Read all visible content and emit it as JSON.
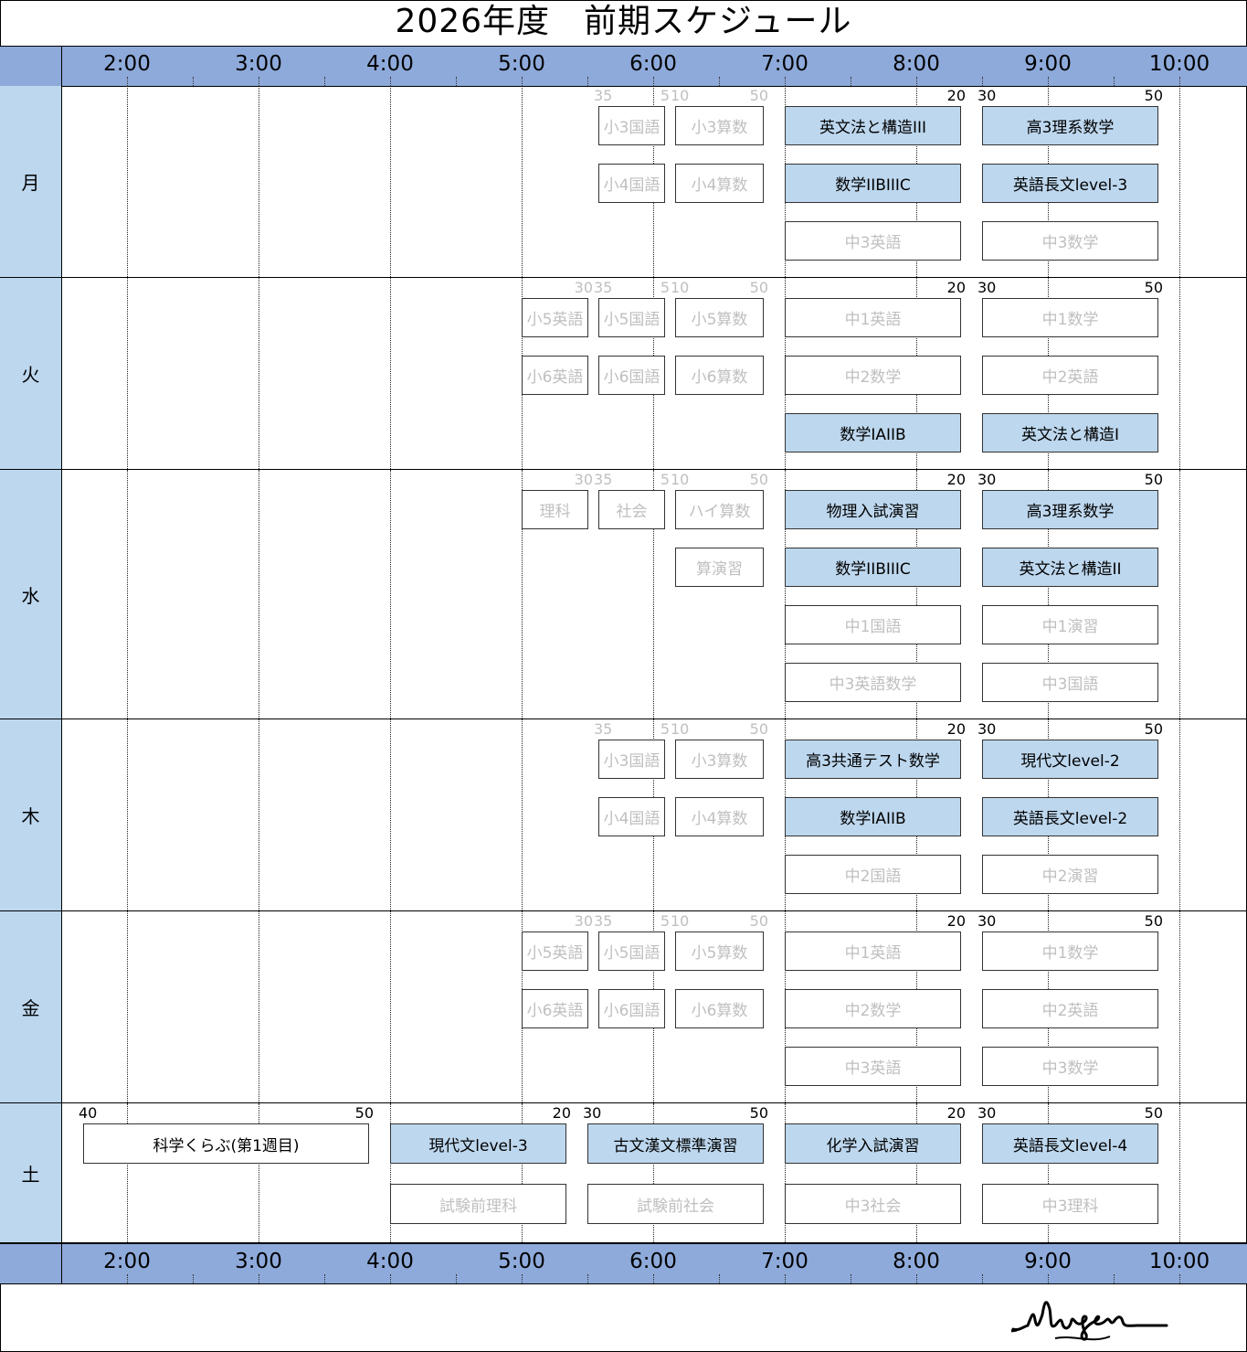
{
  "title": "2026年度　前期スケジュール",
  "hours": [
    "2:00",
    "3:00",
    "4:00",
    "5:00",
    "6:00",
    "7:00",
    "8:00",
    "9:00",
    "10:00"
  ],
  "colors": {
    "header": "#8eaadb",
    "day": "#bdd7ee",
    "highlight": "#bdd7ee",
    "dim_text": "#bfbfbf"
  },
  "rows": [
    {
      "day": "月",
      "lines": 3,
      "marks": [
        {
          "t": "35",
          "at": "5:35",
          "side": "start",
          "tone": "gray"
        },
        {
          "t": "5",
          "at": "6:05",
          "side": "end",
          "tone": "gray"
        },
        {
          "t": "10",
          "at": "6:10",
          "side": "start",
          "tone": "gray"
        },
        {
          "t": "50",
          "at": "6:50",
          "side": "end",
          "tone": "gray"
        },
        {
          "t": "20",
          "at": "8:20",
          "side": "end",
          "tone": "black"
        },
        {
          "t": "30",
          "at": "8:30",
          "side": "start",
          "tone": "black"
        },
        {
          "t": "50",
          "at": "9:50",
          "side": "end",
          "tone": "black"
        }
      ],
      "lessons": [
        {
          "name": "小3国語",
          "start": "5:35",
          "end": "6:05",
          "line": 0,
          "style": "dim"
        },
        {
          "name": "小3算数",
          "start": "6:10",
          "end": "6:50",
          "line": 0,
          "style": "dim"
        },
        {
          "name": "英文法と構造III",
          "start": "7:00",
          "end": "8:20",
          "line": 0,
          "style": "hi"
        },
        {
          "name": "高3理系数学",
          "start": "8:30",
          "end": "9:50",
          "line": 0,
          "style": "hi"
        },
        {
          "name": "小4国語",
          "start": "5:35",
          "end": "6:05",
          "line": 1,
          "style": "dim"
        },
        {
          "name": "小4算数",
          "start": "6:10",
          "end": "6:50",
          "line": 1,
          "style": "dim"
        },
        {
          "name": "数学IIBIIIC",
          "start": "7:00",
          "end": "8:20",
          "line": 1,
          "style": "hi"
        },
        {
          "name": "英語長文level-3",
          "start": "8:30",
          "end": "9:50",
          "line": 1,
          "style": "hi"
        },
        {
          "name": "中3英語",
          "start": "7:00",
          "end": "8:20",
          "line": 2,
          "style": "dim"
        },
        {
          "name": "中3数学",
          "start": "8:30",
          "end": "9:50",
          "line": 2,
          "style": "dim"
        }
      ]
    },
    {
      "day": "火",
      "lines": 3,
      "marks": [
        {
          "t": "30",
          "at": "5:30",
          "side": "end",
          "tone": "gray"
        },
        {
          "t": "35",
          "at": "5:35",
          "side": "start",
          "tone": "gray"
        },
        {
          "t": "5",
          "at": "6:05",
          "side": "end",
          "tone": "gray"
        },
        {
          "t": "10",
          "at": "6:10",
          "side": "start",
          "tone": "gray"
        },
        {
          "t": "50",
          "at": "6:50",
          "side": "end",
          "tone": "gray"
        },
        {
          "t": "20",
          "at": "8:20",
          "side": "end",
          "tone": "black"
        },
        {
          "t": "30",
          "at": "8:30",
          "side": "start",
          "tone": "black"
        },
        {
          "t": "50",
          "at": "9:50",
          "side": "end",
          "tone": "black"
        }
      ],
      "lessons": [
        {
          "name": "小5英語",
          "start": "5:00",
          "end": "5:30",
          "line": 0,
          "style": "dim"
        },
        {
          "name": "小5国語",
          "start": "5:35",
          "end": "6:05",
          "line": 0,
          "style": "dim"
        },
        {
          "name": "小5算数",
          "start": "6:10",
          "end": "6:50",
          "line": 0,
          "style": "dim"
        },
        {
          "name": "中1英語",
          "start": "7:00",
          "end": "8:20",
          "line": 0,
          "style": "dim"
        },
        {
          "name": "中1数学",
          "start": "8:30",
          "end": "9:50",
          "line": 0,
          "style": "dim"
        },
        {
          "name": "小6英語",
          "start": "5:00",
          "end": "5:30",
          "line": 1,
          "style": "dim"
        },
        {
          "name": "小6国語",
          "start": "5:35",
          "end": "6:05",
          "line": 1,
          "style": "dim"
        },
        {
          "name": "小6算数",
          "start": "6:10",
          "end": "6:50",
          "line": 1,
          "style": "dim"
        },
        {
          "name": "中2数学",
          "start": "7:00",
          "end": "8:20",
          "line": 1,
          "style": "dim"
        },
        {
          "name": "中2英語",
          "start": "8:30",
          "end": "9:50",
          "line": 1,
          "style": "dim"
        },
        {
          "name": "数学IAIIB",
          "start": "7:00",
          "end": "8:20",
          "line": 2,
          "style": "hi"
        },
        {
          "name": "英文法と構造I",
          "start": "8:30",
          "end": "9:50",
          "line": 2,
          "style": "hi"
        }
      ]
    },
    {
      "day": "水",
      "lines": 4,
      "marks": [
        {
          "t": "30",
          "at": "5:30",
          "side": "end",
          "tone": "gray"
        },
        {
          "t": "35",
          "at": "5:35",
          "side": "start",
          "tone": "gray"
        },
        {
          "t": "5",
          "at": "6:05",
          "side": "end",
          "tone": "gray"
        },
        {
          "t": "10",
          "at": "6:10",
          "side": "start",
          "tone": "gray"
        },
        {
          "t": "50",
          "at": "6:50",
          "side": "end",
          "tone": "gray"
        },
        {
          "t": "20",
          "at": "8:20",
          "side": "end",
          "tone": "black"
        },
        {
          "t": "30",
          "at": "8:30",
          "side": "start",
          "tone": "black"
        },
        {
          "t": "50",
          "at": "9:50",
          "side": "end",
          "tone": "black"
        }
      ],
      "lessons": [
        {
          "name": "理科",
          "start": "5:00",
          "end": "5:30",
          "line": 0,
          "style": "dim"
        },
        {
          "name": "社会",
          "start": "5:35",
          "end": "6:05",
          "line": 0,
          "style": "dim"
        },
        {
          "name": "ハイ算数",
          "start": "6:10",
          "end": "6:50",
          "line": 0,
          "style": "dim"
        },
        {
          "name": "物理入試演習",
          "start": "7:00",
          "end": "8:20",
          "line": 0,
          "style": "hi"
        },
        {
          "name": "高3理系数学",
          "start": "8:30",
          "end": "9:50",
          "line": 0,
          "style": "hi"
        },
        {
          "name": "算演習",
          "start": "6:10",
          "end": "6:50",
          "line": 1,
          "style": "dim"
        },
        {
          "name": "数学IIBIIIC",
          "start": "7:00",
          "end": "8:20",
          "line": 1,
          "style": "hi"
        },
        {
          "name": "英文法と構造II",
          "start": "8:30",
          "end": "9:50",
          "line": 1,
          "style": "hi"
        },
        {
          "name": "中1国語",
          "start": "7:00",
          "end": "8:20",
          "line": 2,
          "style": "dim"
        },
        {
          "name": "中1演習",
          "start": "8:30",
          "end": "9:50",
          "line": 2,
          "style": "dim"
        },
        {
          "name": "中3英語数学",
          "start": "7:00",
          "end": "8:20",
          "line": 3,
          "style": "dim"
        },
        {
          "name": "中3国語",
          "start": "8:30",
          "end": "9:50",
          "line": 3,
          "style": "dim"
        }
      ]
    },
    {
      "day": "木",
      "lines": 3,
      "marks": [
        {
          "t": "35",
          "at": "5:35",
          "side": "start",
          "tone": "gray"
        },
        {
          "t": "5",
          "at": "6:05",
          "side": "end",
          "tone": "gray"
        },
        {
          "t": "10",
          "at": "6:10",
          "side": "start",
          "tone": "gray"
        },
        {
          "t": "50",
          "at": "6:50",
          "side": "end",
          "tone": "gray"
        },
        {
          "t": "20",
          "at": "8:20",
          "side": "end",
          "tone": "black"
        },
        {
          "t": "30",
          "at": "8:30",
          "side": "start",
          "tone": "black"
        },
        {
          "t": "50",
          "at": "9:50",
          "side": "end",
          "tone": "black"
        }
      ],
      "lessons": [
        {
          "name": "小3国語",
          "start": "5:35",
          "end": "6:05",
          "line": 0,
          "style": "dim"
        },
        {
          "name": "小3算数",
          "start": "6:10",
          "end": "6:50",
          "line": 0,
          "style": "dim"
        },
        {
          "name": "高3共通テスト数学",
          "start": "7:00",
          "end": "8:20",
          "line": 0,
          "style": "hi"
        },
        {
          "name": "現代文level-2",
          "start": "8:30",
          "end": "9:50",
          "line": 0,
          "style": "hi"
        },
        {
          "name": "小4国語",
          "start": "5:35",
          "end": "6:05",
          "line": 1,
          "style": "dim"
        },
        {
          "name": "小4算数",
          "start": "6:10",
          "end": "6:50",
          "line": 1,
          "style": "dim"
        },
        {
          "name": "数学IAIIB",
          "start": "7:00",
          "end": "8:20",
          "line": 1,
          "style": "hi"
        },
        {
          "name": "英語長文level-2",
          "start": "8:30",
          "end": "9:50",
          "line": 1,
          "style": "hi"
        },
        {
          "name": "中2国語",
          "start": "7:00",
          "end": "8:20",
          "line": 2,
          "style": "dim"
        },
        {
          "name": "中2演習",
          "start": "8:30",
          "end": "9:50",
          "line": 2,
          "style": "dim"
        }
      ]
    },
    {
      "day": "金",
      "lines": 3,
      "marks": [
        {
          "t": "30",
          "at": "5:30",
          "side": "end",
          "tone": "gray"
        },
        {
          "t": "35",
          "at": "5:35",
          "side": "start",
          "tone": "gray"
        },
        {
          "t": "5",
          "at": "6:05",
          "side": "end",
          "tone": "gray"
        },
        {
          "t": "10",
          "at": "6:10",
          "side": "start",
          "tone": "gray"
        },
        {
          "t": "50",
          "at": "6:50",
          "side": "end",
          "tone": "gray"
        },
        {
          "t": "20",
          "at": "8:20",
          "side": "end",
          "tone": "black"
        },
        {
          "t": "30",
          "at": "8:30",
          "side": "start",
          "tone": "black"
        },
        {
          "t": "50",
          "at": "9:50",
          "side": "end",
          "tone": "black"
        }
      ],
      "lessons": [
        {
          "name": "小5英語",
          "start": "5:00",
          "end": "5:30",
          "line": 0,
          "style": "dim"
        },
        {
          "name": "小5国語",
          "start": "5:35",
          "end": "6:05",
          "line": 0,
          "style": "dim"
        },
        {
          "name": "小5算数",
          "start": "6:10",
          "end": "6:50",
          "line": 0,
          "style": "dim"
        },
        {
          "name": "中1英語",
          "start": "7:00",
          "end": "8:20",
          "line": 0,
          "style": "dim"
        },
        {
          "name": "中1数学",
          "start": "8:30",
          "end": "9:50",
          "line": 0,
          "style": "dim"
        },
        {
          "name": "小6英語",
          "start": "5:00",
          "end": "5:30",
          "line": 1,
          "style": "dim"
        },
        {
          "name": "小6国語",
          "start": "5:35",
          "end": "6:05",
          "line": 1,
          "style": "dim"
        },
        {
          "name": "小6算数",
          "start": "6:10",
          "end": "6:50",
          "line": 1,
          "style": "dim"
        },
        {
          "name": "中2数学",
          "start": "7:00",
          "end": "8:20",
          "line": 1,
          "style": "dim"
        },
        {
          "name": "中2英語",
          "start": "8:30",
          "end": "9:50",
          "line": 1,
          "style": "dim"
        },
        {
          "name": "中3英語",
          "start": "7:00",
          "end": "8:20",
          "line": 2,
          "style": "dim"
        },
        {
          "name": "中3数学",
          "start": "8:30",
          "end": "9:50",
          "line": 2,
          "style": "dim"
        }
      ]
    },
    {
      "day": "土",
      "lines": 2,
      "marks": [
        {
          "t": "40",
          "at": "1:40",
          "side": "start",
          "tone": "black"
        },
        {
          "t": "50",
          "at": "3:50",
          "side": "end",
          "tone": "black"
        },
        {
          "t": "20",
          "at": "5:20",
          "side": "end",
          "tone": "black"
        },
        {
          "t": "30",
          "at": "5:30",
          "side": "start",
          "tone": "black"
        },
        {
          "t": "50",
          "at": "6:50",
          "side": "end",
          "tone": "black"
        },
        {
          "t": "20",
          "at": "8:20",
          "side": "end",
          "tone": "black"
        },
        {
          "t": "30",
          "at": "8:30",
          "side": "start",
          "tone": "black"
        },
        {
          "t": "50",
          "at": "9:50",
          "side": "end",
          "tone": "black"
        }
      ],
      "lessons": [
        {
          "name": "科学くらぶ(第1週目)",
          "start": "1:40",
          "end": "3:50",
          "line": 0,
          "style": "plain"
        },
        {
          "name": "現代文level-3",
          "start": "4:00",
          "end": "5:20",
          "line": 0,
          "style": "hi"
        },
        {
          "name": "古文漢文標準演習",
          "start": "5:30",
          "end": "6:50",
          "line": 0,
          "style": "hi"
        },
        {
          "name": "化学入試演習",
          "start": "7:00",
          "end": "8:20",
          "line": 0,
          "style": "hi"
        },
        {
          "name": "英語長文level-4",
          "start": "8:30",
          "end": "9:50",
          "line": 0,
          "style": "hi"
        },
        {
          "name": "試験前理科",
          "start": "4:00",
          "end": "5:20",
          "line": 1,
          "style": "dim"
        },
        {
          "name": "試験前社会",
          "start": "5:30",
          "end": "6:50",
          "line": 1,
          "style": "dim"
        },
        {
          "name": "中3社会",
          "start": "7:00",
          "end": "8:20",
          "line": 1,
          "style": "dim"
        },
        {
          "name": "中3理科",
          "start": "8:30",
          "end": "9:50",
          "line": 1,
          "style": "dim"
        }
      ]
    }
  ],
  "signature": "Mugen"
}
